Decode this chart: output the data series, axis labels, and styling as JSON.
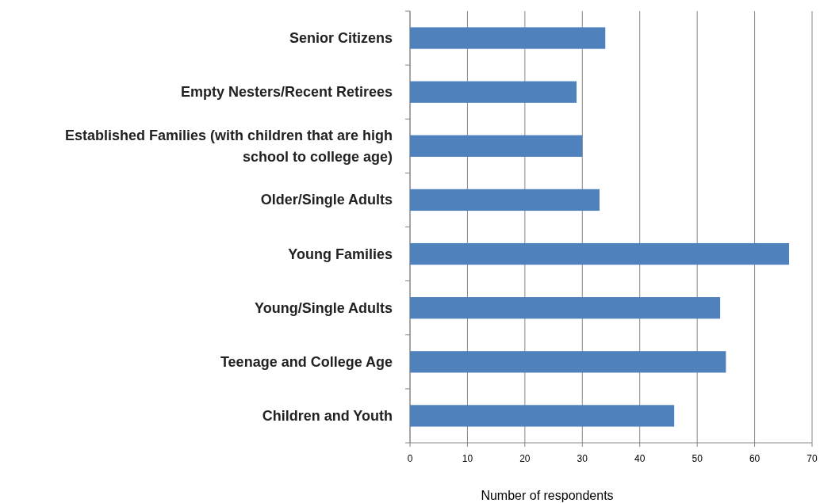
{
  "chart_data": {
    "type": "bar",
    "orientation": "horizontal",
    "categories": [
      "Senior Citizens",
      "Empty Nesters/Recent Retirees",
      "Established Families (with children that are high school to college age)",
      "Older/Single Adults",
      "Young Families",
      "Young/Single Adults",
      "Teenage and College Age",
      "Children and Youth"
    ],
    "values": [
      34,
      29,
      30,
      33,
      66,
      54,
      55,
      46
    ],
    "color": "#4f81bd",
    "xlim": [
      0,
      70
    ],
    "xticks": [
      0,
      10,
      20,
      30,
      40,
      50,
      60,
      70
    ],
    "xlabel": "Number of respondents",
    "grid": "x"
  }
}
